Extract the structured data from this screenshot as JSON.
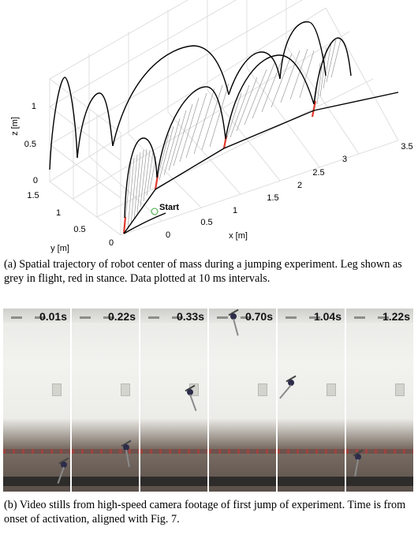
{
  "figure_a": {
    "axis": {
      "x_label": "x [m]",
      "y_label": "y [m]",
      "z_label": "z [m]",
      "x_ticks": [
        "0",
        "0.5",
        "1",
        "1.5",
        "2",
        "2.5",
        "3",
        "3.5"
      ],
      "y_ticks": [
        "0",
        "0.5",
        "1",
        "1.5"
      ],
      "z_ticks": [
        "0",
        "0.5",
        "1"
      ]
    },
    "annotation_start": "Start",
    "colors": {
      "trajectory": "#000000",
      "leg_flight": "#9a9a9a",
      "leg_stance": "#e03a2e",
      "start_marker": "#3aa83a"
    },
    "caption": "(a) Spatial trajectory of robot center of mass during a jumping experiment. Leg shown as grey in flight, red in stance. Data plotted at 10 ms intervals."
  },
  "figure_b": {
    "frames": [
      {
        "time": "0.01s"
      },
      {
        "time": "0.22s"
      },
      {
        "time": "0.33s"
      },
      {
        "time": "0.70s"
      },
      {
        "time": "1.04s"
      },
      {
        "time": "1.22s"
      }
    ],
    "caption": "(b) Video stills from high-speed camera footage of first jump of experiment. Time is from onset of activation, aligned with Fig. 7."
  }
}
